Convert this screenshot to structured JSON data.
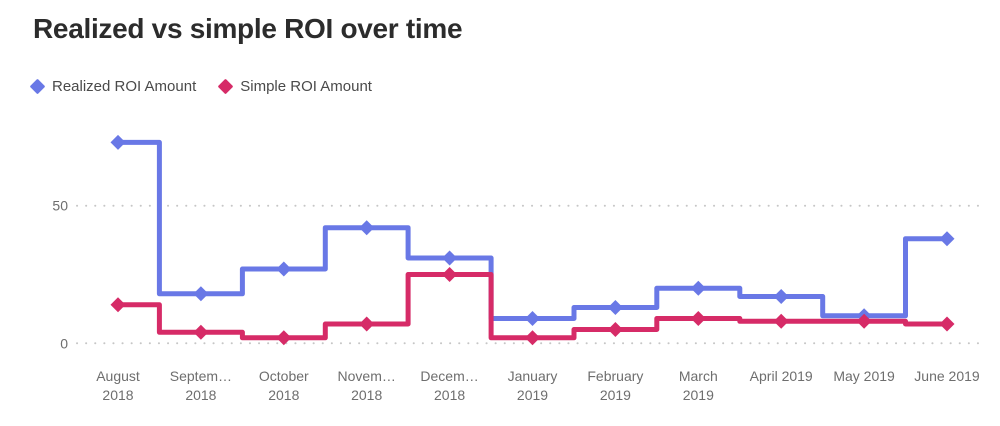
{
  "chart_data": {
    "type": "line",
    "step": true,
    "title": "Realized vs simple ROI over time",
    "categories": [
      "August 2018",
      "September 2018",
      "October 2018",
      "November 2018",
      "December 2018",
      "January 2019",
      "February 2019",
      "March 2019",
      "April 2019",
      "May 2019",
      "June 2019"
    ],
    "x_tick_labels": [
      [
        "August",
        "2018"
      ],
      [
        "Septem…",
        "2018"
      ],
      [
        "October",
        "2018"
      ],
      [
        "Novem…",
        "2018"
      ],
      [
        "Decem…",
        "2018"
      ],
      [
        "January",
        "2019"
      ],
      [
        "February",
        "2019"
      ],
      [
        "March",
        "2019"
      ],
      [
        "April 2019"
      ],
      [
        "May 2019"
      ],
      [
        "June 2019"
      ]
    ],
    "series": [
      {
        "name": "Realized ROI Amount",
        "color": "#6978E6",
        "values": [
          73,
          18,
          27,
          42,
          31,
          9,
          13,
          20,
          17,
          10,
          38
        ]
      },
      {
        "name": "Simple ROI Amount",
        "color": "#D62B67",
        "values": [
          14,
          4,
          2,
          7,
          25,
          2,
          5,
          9,
          8,
          8,
          7
        ]
      }
    ],
    "y_ticks": [
      0,
      50
    ],
    "ylim": [
      0,
      77
    ],
    "xlabel": "",
    "ylabel": "",
    "grid": "dotted-horizontal",
    "legend_position": "top-left",
    "marker": "diamond",
    "axis_text_color": "#6e6e6e",
    "grid_color": "#c6c6c6",
    "title_color": "#2c2c2c"
  }
}
